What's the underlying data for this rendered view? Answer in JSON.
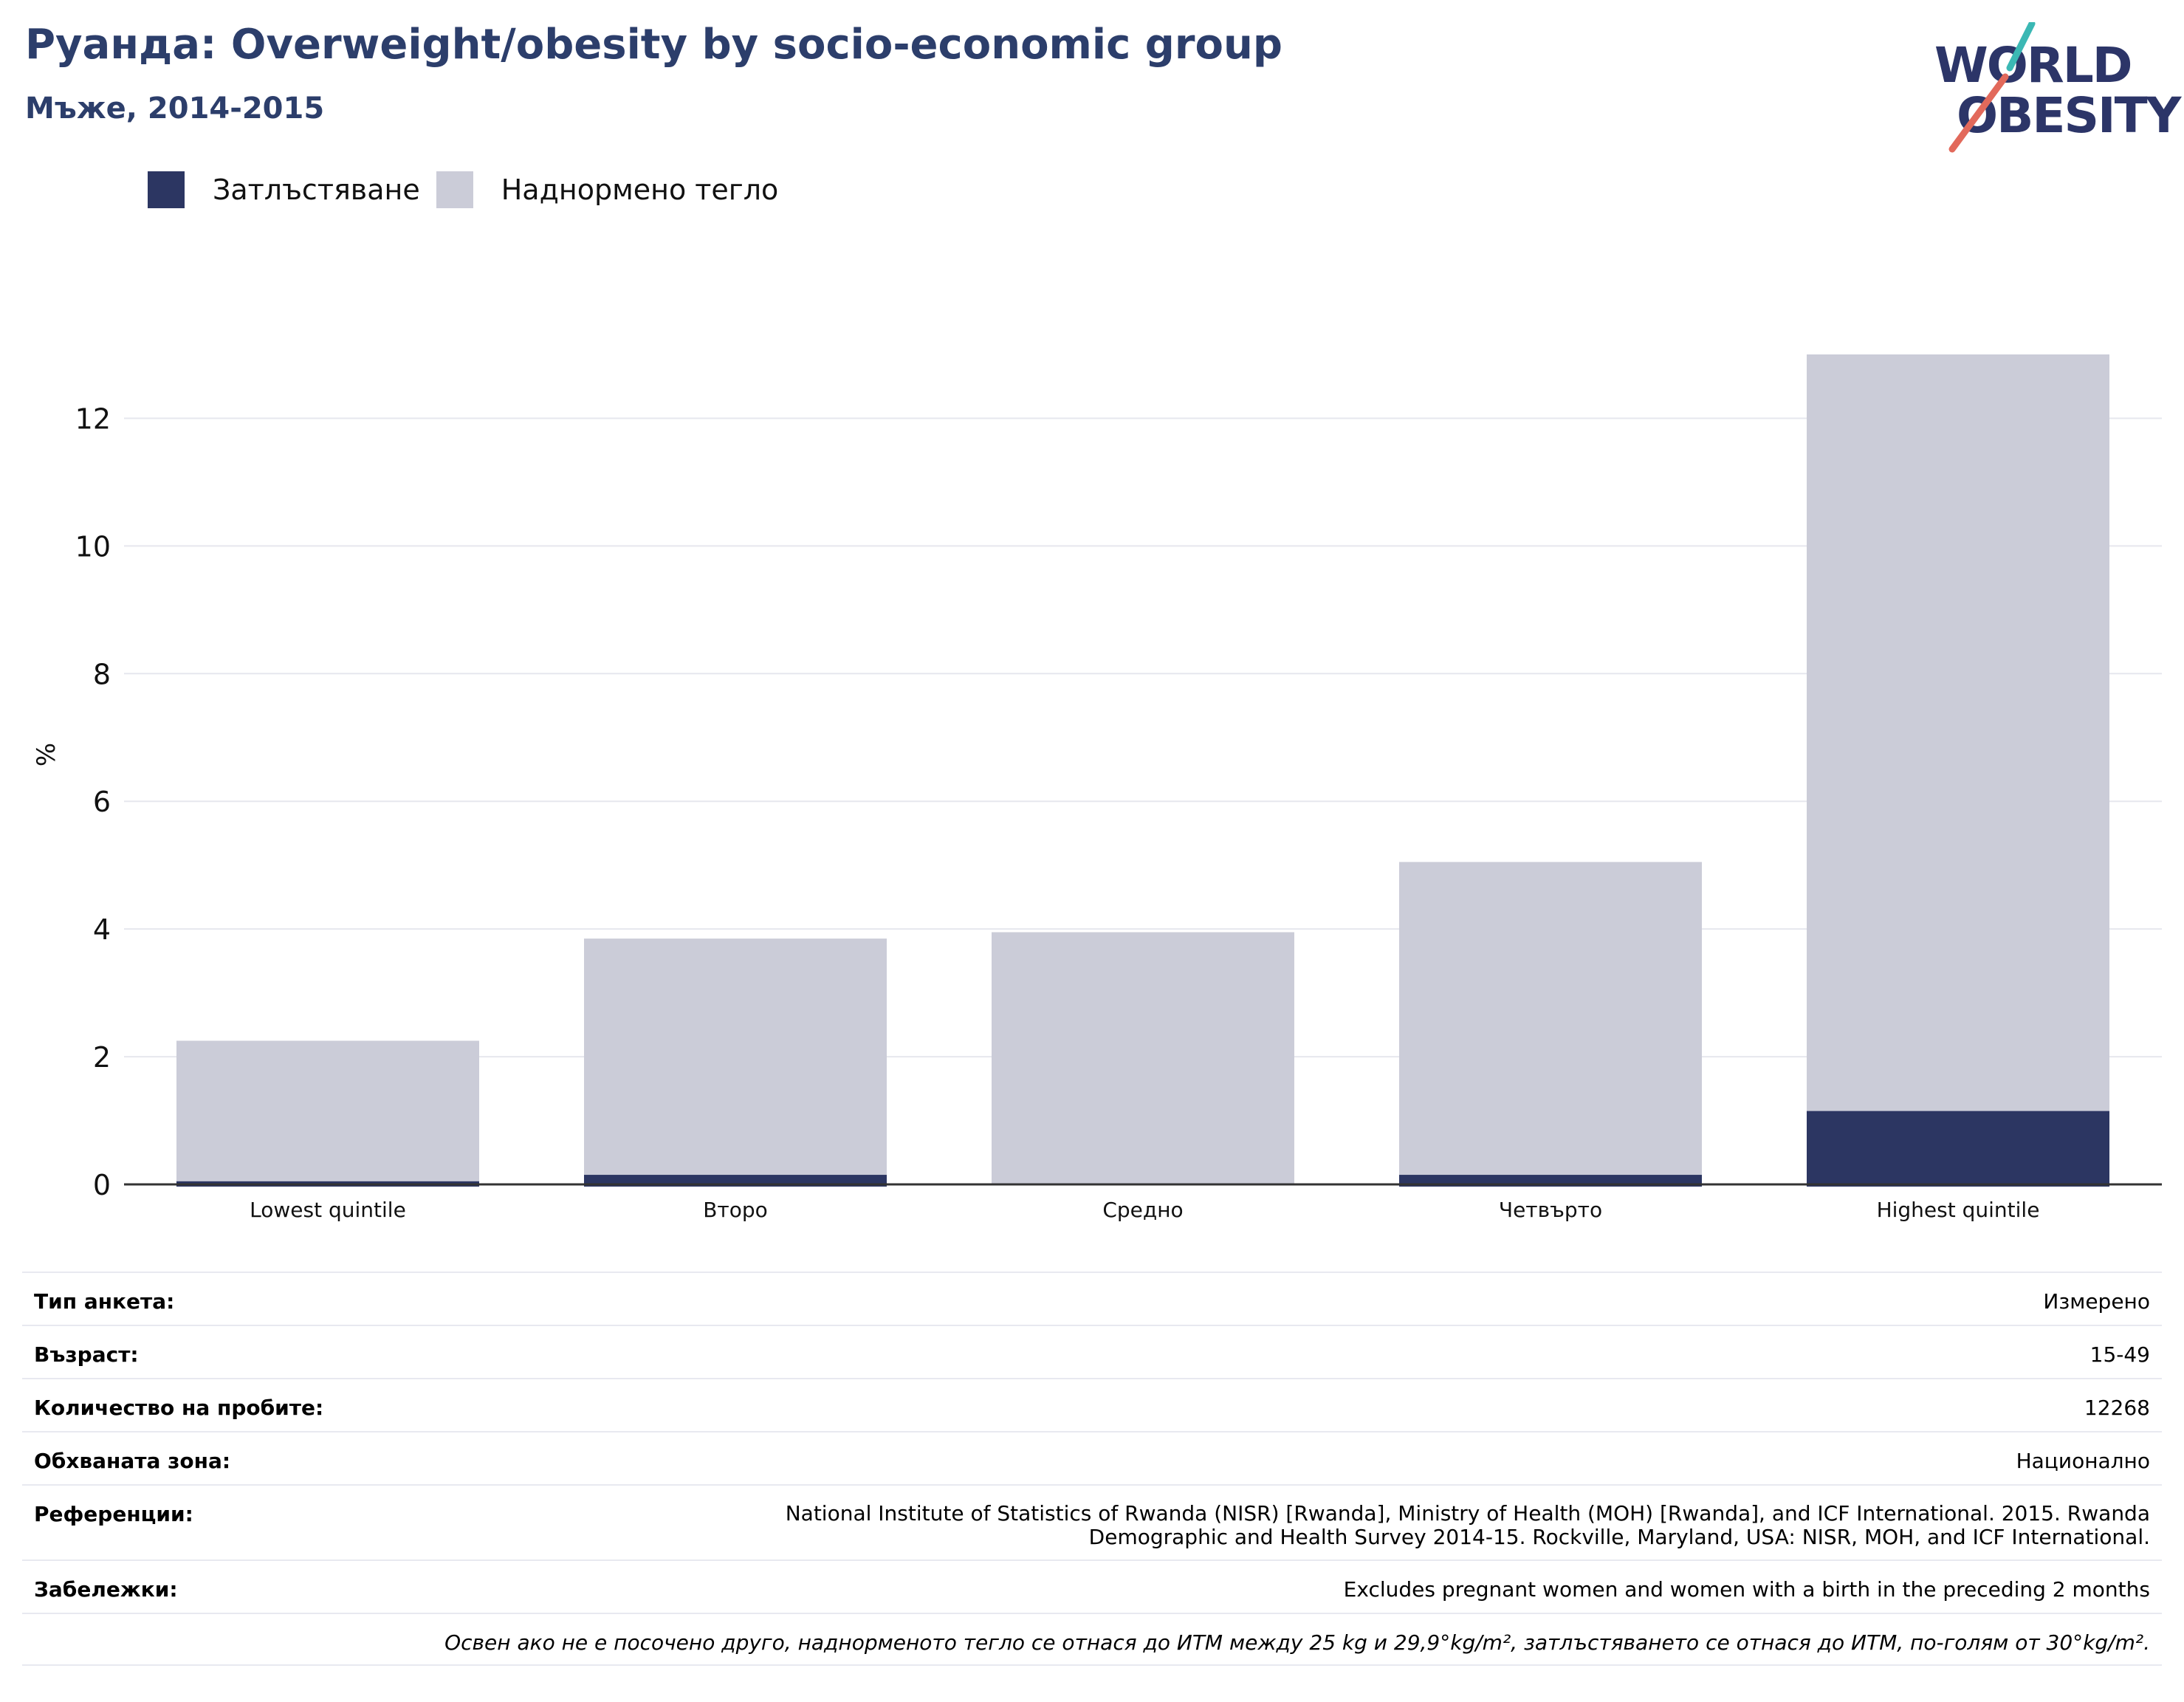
{
  "header": {
    "title": "Руанда: Overweight/obesity by socio-economic group",
    "subtitle": "Мъже, 2014-2015"
  },
  "logo": {
    "line1": "WORLD",
    "line2": "OBESITY"
  },
  "colors": {
    "obesity": "#2c3662",
    "overweight": "#cbccd8",
    "title": "#2c3e6b",
    "gridline": "#e6e7ee"
  },
  "chart_data": {
    "type": "bar",
    "stacked": true,
    "categories": [
      "Lowest quintile",
      "Второ",
      "Средно",
      "Четвърто",
      "Highest quintile"
    ],
    "series": [
      {
        "name": "Затлъстяване",
        "values": [
          0.05,
          0.15,
          0.0,
          0.15,
          1.15
        ]
      },
      {
        "name": "Наднормено тегло",
        "values": [
          2.2,
          3.7,
          3.95,
          4.9,
          11.85
        ]
      }
    ],
    "ylabel": "%",
    "ylim": [
      0,
      13
    ],
    "yticks": [
      0,
      2,
      4,
      6,
      8,
      10,
      12
    ],
    "grid": true,
    "legend": "top-left"
  },
  "info": {
    "rows": [
      {
        "key": "Тип анкета:",
        "value": "Измерено"
      },
      {
        "key": "Възраст:",
        "value": "15-49"
      },
      {
        "key": "Количество на пробите:",
        "value": "12268"
      },
      {
        "key": "Обхваната зона:",
        "value": "Национално"
      },
      {
        "key": "Референции:",
        "value": "National Institute of Statistics of Rwanda (NISR) [Rwanda], Ministry of Health (MOH) [Rwanda], and ICF International. 2015. Rwanda Demographic and Health Survey 2014-15. Rockville, Maryland, USA: NISR, MOH, and ICF International."
      },
      {
        "key": "Забележки:",
        "value": "Excludes pregnant women and women with a birth in the preceding 2 months"
      }
    ],
    "note": "Освен ако не е посочено друго, наднорменото тегло се отнася до ИТМ между 25 kg и 29,9°kg/m², затлъстяването се отнася до ИТМ, по-голям от 30°kg/m²."
  }
}
